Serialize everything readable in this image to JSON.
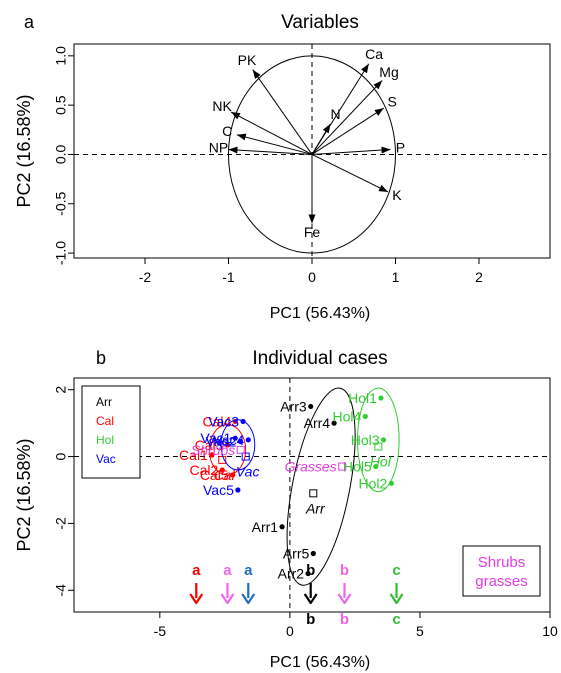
{
  "chart_data": [
    {
      "type": "scatter",
      "panel_label": "a",
      "title": "Variables",
      "xlabel": "PC1 (56.43%)",
      "ylabel": "PC2 (16.58%)",
      "xlim": [
        -2.85,
        2.85
      ],
      "ylim": [
        -1.05,
        1.12
      ],
      "xticks": [
        -2,
        -1,
        0,
        1,
        2
      ],
      "yticks": [
        -1.0,
        -0.5,
        0.0,
        0.5,
        1.0
      ],
      "ytick_labels": [
        "-1.0",
        "-0.5",
        "0.0",
        "0.5",
        "1.0"
      ],
      "reference_lines": {
        "x": 0,
        "y": 0
      },
      "circle": {
        "center": [
          0,
          0
        ],
        "radius": 1
      },
      "vectors": [
        {
          "label": "Ca",
          "x": 0.68,
          "y": 0.92
        },
        {
          "label": "Mg",
          "x": 0.84,
          "y": 0.75
        },
        {
          "label": "S",
          "x": 0.86,
          "y": 0.47
        },
        {
          "label": "P",
          "x": 0.94,
          "y": 0.05
        },
        {
          "label": "K",
          "x": 0.91,
          "y": -0.38
        },
        {
          "label": "Fe",
          "x": 0.0,
          "y": -0.7
        },
        {
          "label": "N",
          "x": 0.22,
          "y": 0.31
        },
        {
          "label": "PK",
          "x": -0.71,
          "y": 0.86
        },
        {
          "label": "NK",
          "x": -0.97,
          "y": 0.43
        },
        {
          "label": "C",
          "x": -0.9,
          "y": 0.2
        },
        {
          "label": "NP",
          "x": -1.0,
          "y": 0.05
        }
      ]
    },
    {
      "type": "scatter",
      "panel_label": "b",
      "title": "Individual cases",
      "xlabel": "PC1 (56.43%)",
      "ylabel": "PC2 (16.58%)",
      "xlim": [
        -8.3,
        10.0
      ],
      "ylim": [
        -4.65,
        2.35
      ],
      "xticks": [
        -5,
        0,
        5,
        10
      ],
      "yticks": [
        -4,
        -2,
        0,
        2
      ],
      "reference_lines": {
        "x": 0,
        "y": 0
      },
      "legend": {
        "position": "top-left",
        "entries": [
          {
            "label": "Arr",
            "color": "#000000"
          },
          {
            "label": "Cal",
            "color": "#ff0000"
          },
          {
            "label": "Hol",
            "color": "#33cc33"
          },
          {
            "label": "Vac",
            "color": "#0000ff"
          }
        ]
      },
      "groups": [
        {
          "name": "Arr",
          "color": "#000000",
          "points": [
            {
              "label": "Arr3",
              "x": 0.8,
              "y": 1.5
            },
            {
              "label": "Arr4",
              "x": 1.7,
              "y": 1.0
            },
            {
              "label": "Arr1",
              "x": -0.3,
              "y": -2.1
            },
            {
              "label": "Arr5",
              "x": 0.9,
              "y": -2.9
            },
            {
              "label": "Arr2",
              "x": 0.7,
              "y": -3.5
            }
          ],
          "centroid": {
            "label": "Arr",
            "x": 0.9,
            "y": -1.1
          },
          "ellipse": {
            "cx": 1.2,
            "cy": -0.9,
            "rx": 1.1,
            "ry": 3.0,
            "rotate": 11
          }
        },
        {
          "name": "Hol",
          "color": "#33cc33",
          "points": [
            {
              "label": "Hol1",
              "x": 3.5,
              "y": 1.75
            },
            {
              "label": "Hol4",
              "x": 2.9,
              "y": 1.2
            },
            {
              "label": "Hol3",
              "x": 3.6,
              "y": 0.5
            },
            {
              "label": "Hol5",
              "x": 3.3,
              "y": -0.3
            },
            {
              "label": "Hol2",
              "x": 3.9,
              "y": -0.8
            }
          ],
          "centroid": {
            "label": "Hol",
            "x": 3.4,
            "y": 0.3
          },
          "ellipse": {
            "cx": 3.4,
            "cy": 0.5,
            "rx": 0.8,
            "ry": 1.55,
            "rotate": 0
          }
        },
        {
          "name": "Cal",
          "color": "#ff0000",
          "points": [
            {
              "label": "Cal4",
              "x": -2.1,
              "y": 1.05
            },
            {
              "label": "Cal3",
              "x": -2.4,
              "y": 0.35
            },
            {
              "label": "Cal1",
              "x": -3.0,
              "y": 0.05
            },
            {
              "label": "Cal2",
              "x": -2.6,
              "y": -0.4
            },
            {
              "label": "Cal5",
              "x": -2.2,
              "y": -0.55
            }
          ],
          "centroid": {
            "label": "Cal",
            "x": -2.6,
            "y": -0.1
          },
          "ellipse": {
            "cx": -2.4,
            "cy": 0.2,
            "rx": 0.7,
            "ry": 0.75,
            "rotate": 0
          }
        },
        {
          "name": "Vac",
          "color": "#0000ff",
          "points": [
            {
              "label": "Vac3",
              "x": -1.8,
              "y": 1.05
            },
            {
              "label": "Vac1",
              "x": -2.1,
              "y": 0.55
            },
            {
              "label": "Vac2",
              "x": -1.9,
              "y": 0.45
            },
            {
              "label": "Vac4",
              "x": -1.6,
              "y": 0.5
            },
            {
              "label": "Vac5",
              "x": -2.0,
              "y": -1.0
            }
          ],
          "centroid": {
            "label": "Vac",
            "x": -1.7,
            "y": 0.0
          },
          "ellipse": {
            "cx": -2.0,
            "cy": 0.35,
            "rx": 0.65,
            "ry": 0.75,
            "rotate": 0
          }
        }
      ],
      "extra_labels": [
        {
          "label": "Shrubs",
          "x": -2.1,
          "y": 0.2,
          "color": "#e040e0",
          "style": "italic"
        },
        {
          "label": "Grasses",
          "x": 1.8,
          "y": -0.3,
          "color": "#e040e0",
          "style": "italic"
        }
      ],
      "markers_on_axis": [
        {
          "letter": "a",
          "x": -3.6,
          "color": "#ff0000"
        },
        {
          "letter": "a",
          "x": -2.4,
          "color": "#ee66ee"
        },
        {
          "letter": "a",
          "x": -1.6,
          "color": "#1e6fc0"
        },
        {
          "letter": "b",
          "x": 0.8,
          "color": "#000000"
        },
        {
          "letter": "b",
          "x": 2.1,
          "color": "#ee66ee"
        },
        {
          "letter": "c",
          "x": 4.1,
          "color": "#33bb33"
        }
      ],
      "annotation_box": {
        "lines": [
          "Shrubs",
          "grasses"
        ],
        "color": "#e040e0"
      }
    }
  ]
}
